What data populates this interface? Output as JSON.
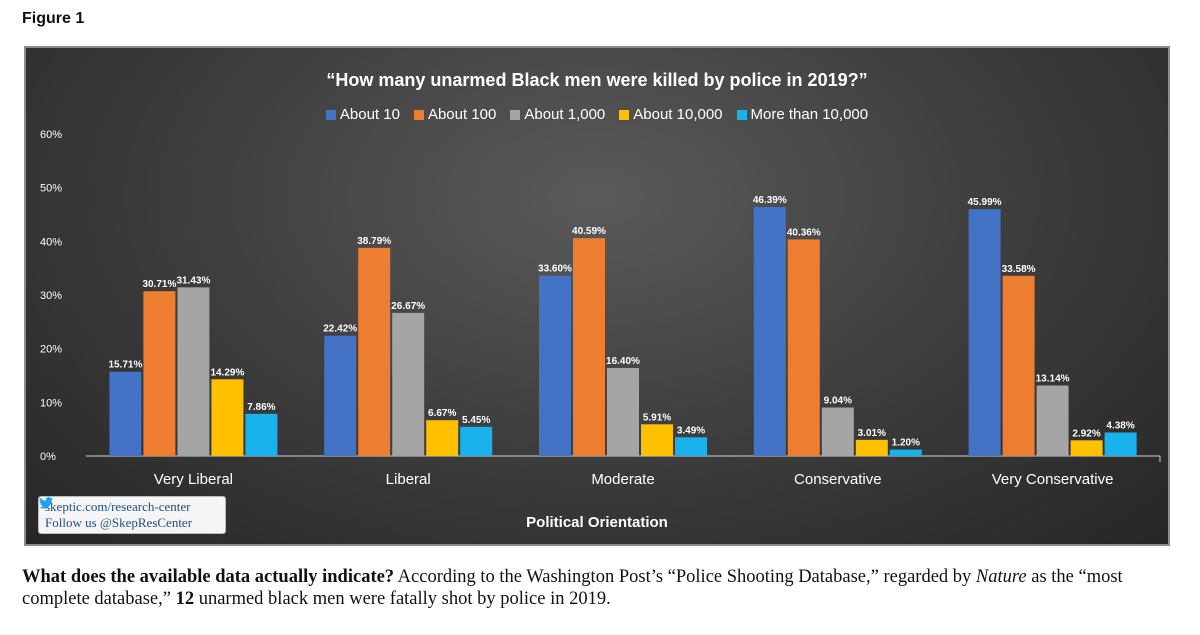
{
  "figure_label": "Figure 1",
  "watermark": {
    "url": "skeptic.com/research-center",
    "follow": "Follow us @SkepResCenter"
  },
  "caption": {
    "bold_lead": "What does the available data actually indicate?",
    "part1": " According to the Washington Post’s “Police Shooting Database,” regarded by ",
    "italic_word": "Nature",
    "part2": " as the “most complete database,” ",
    "bold_number": "12",
    "part3": " unarmed black men were fatally shot by police in 2019."
  },
  "chart_data": {
    "type": "bar",
    "title": "“How many unarmed Black men were killed by police in 2019?”",
    "xlabel": "Political Orientation",
    "ylabel": "",
    "ylim": [
      0,
      60
    ],
    "yticks": [
      "0%",
      "10%",
      "20%",
      "30%",
      "40%",
      "50%",
      "60%"
    ],
    "legend_position": "top",
    "grid": false,
    "categories": [
      "Very Liberal",
      "Liberal",
      "Moderate",
      "Conservative",
      "Very Conservative"
    ],
    "series": [
      {
        "name": "About 10",
        "color": "#4472c4",
        "values": [
          15.71,
          22.42,
          33.6,
          46.39,
          45.99
        ],
        "labels": [
          "15.71%",
          "22.42%",
          "33.60%",
          "46.39%",
          "45.99%"
        ]
      },
      {
        "name": "About 100",
        "color": "#ed7d31",
        "values": [
          30.71,
          38.79,
          40.59,
          40.36,
          33.58
        ],
        "labels": [
          "30.71%",
          "38.79%",
          "40.59%",
          "40.36%",
          "33.58%"
        ]
      },
      {
        "name": "About 1,000",
        "color": "#a5a5a5",
        "values": [
          31.43,
          26.67,
          16.4,
          9.04,
          13.14
        ],
        "labels": [
          "31.43%",
          "26.67%",
          "16.40%",
          "9.04%",
          "13.14%"
        ]
      },
      {
        "name": "About 10,000",
        "color": "#ffc000",
        "values": [
          14.29,
          6.67,
          5.91,
          3.01,
          2.92
        ],
        "labels": [
          "14.29%",
          "6.67%",
          "5.91%",
          "3.01%",
          "2.92%"
        ]
      },
      {
        "name": "More than 10,000",
        "color": "#1ab2ec",
        "values": [
          7.86,
          5.45,
          3.49,
          1.2,
          4.38
        ],
        "labels": [
          "7.86%",
          "5.45%",
          "3.49%",
          "1.20%",
          "4.38%"
        ]
      }
    ]
  }
}
